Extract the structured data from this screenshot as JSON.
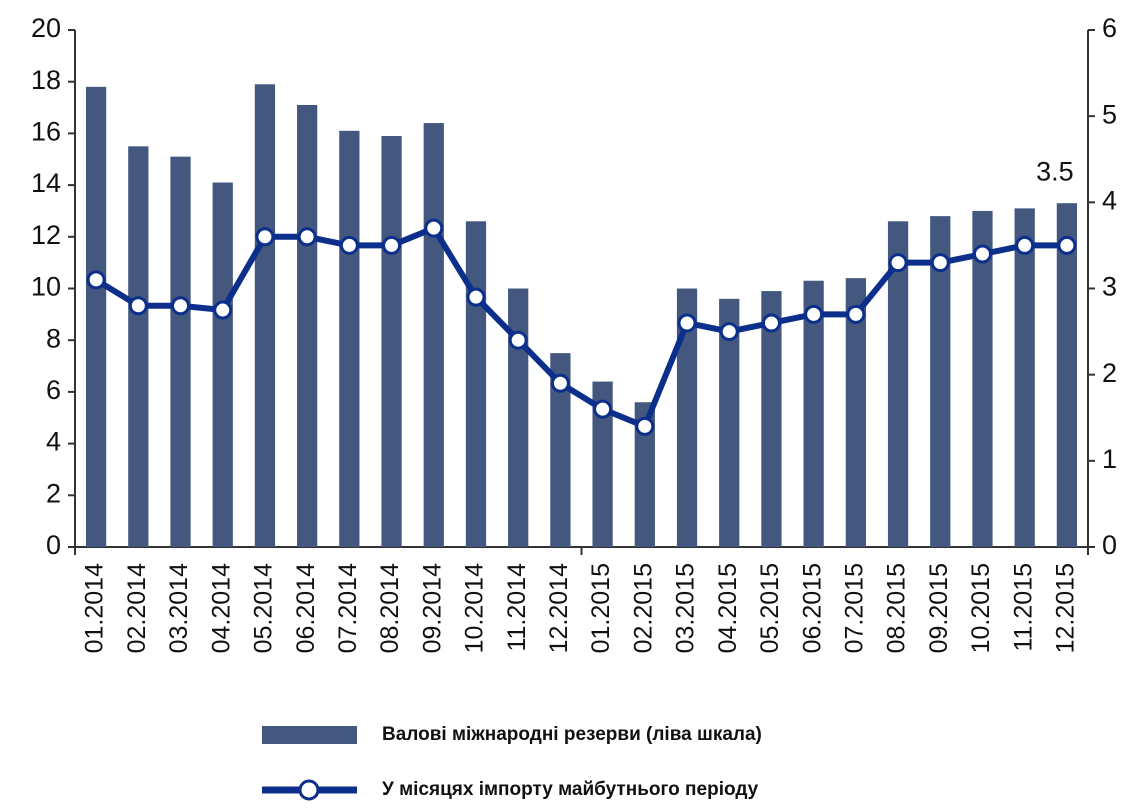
{
  "chart_data": {
    "type": "bar_line",
    "categories": [
      "01.2014",
      "02.2014",
      "03.2014",
      "04.2014",
      "05.2014",
      "06.2014",
      "07.2014",
      "08.2014",
      "09.2014",
      "10.2014",
      "11.2014",
      "12.2014",
      "01.2015",
      "02.2015",
      "03.2015",
      "04.2015",
      "05.2015",
      "06.2015",
      "07.2015",
      "08.2015",
      "09.2015",
      "10.2015",
      "11.2015",
      "12.2015"
    ],
    "series": [
      {
        "name": "Валові міжнародні резерви (ліва шкала)",
        "type": "bar",
        "color": "#44587f",
        "values": [
          17.8,
          15.5,
          15.1,
          14.1,
          17.9,
          17.1,
          16.1,
          15.9,
          16.4,
          12.6,
          10.0,
          7.5,
          6.4,
          5.6,
          10.0,
          9.6,
          9.9,
          10.3,
          10.4,
          12.6,
          12.8,
          13.0,
          13.1,
          13.3
        ]
      },
      {
        "name": "У місяцях імпорту майбутнього періоду",
        "type": "line",
        "color": "#0b2f8a",
        "axis": "y2",
        "values": [
          3.1,
          2.8,
          2.8,
          2.75,
          3.6,
          3.6,
          3.5,
          3.5,
          3.7,
          2.9,
          2.4,
          1.9,
          1.6,
          1.4,
          2.6,
          2.5,
          2.6,
          2.7,
          2.7,
          3.3,
          3.3,
          3.4,
          3.5,
          3.5
        ],
        "value_labels": [
          null,
          null,
          null,
          null,
          null,
          null,
          null,
          null,
          null,
          null,
          null,
          null,
          null,
          null,
          null,
          null,
          null,
          null,
          null,
          null,
          null,
          null,
          null,
          "3.5"
        ]
      }
    ],
    "ylim": [
      0,
      20
    ],
    "yticks": [
      0,
      2,
      4,
      6,
      8,
      10,
      12,
      14,
      16,
      18,
      20
    ],
    "y2lim": [
      0,
      6
    ],
    "y2ticks": [
      0,
      1,
      2,
      3,
      4,
      5,
      6
    ],
    "grid": false,
    "legend": "bottom"
  }
}
